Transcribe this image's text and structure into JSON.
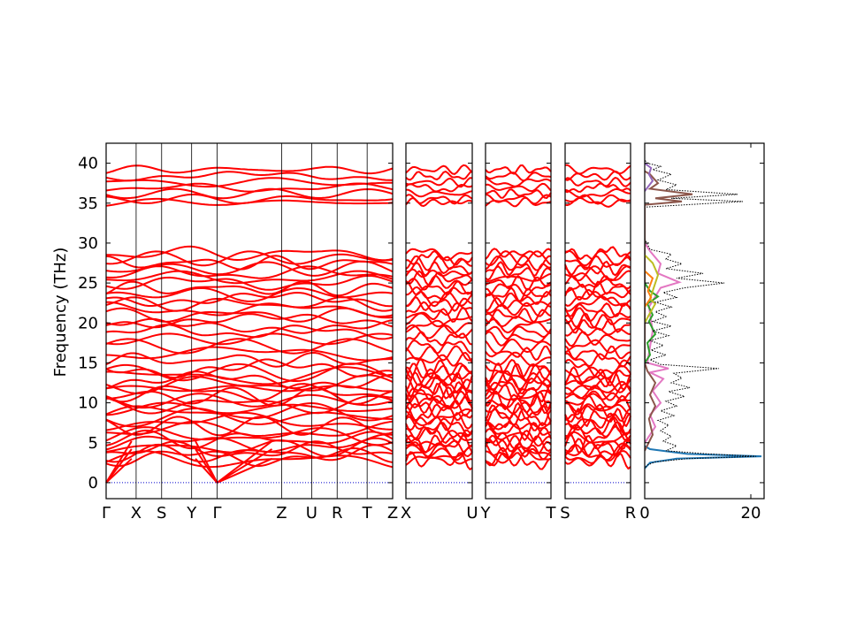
{
  "chart_data": {
    "type": "line",
    "ylabel": "Frequency (THz)",
    "ylim": [
      -2,
      42.5
    ],
    "yticks": [
      0,
      5,
      10,
      15,
      20,
      25,
      30,
      35,
      40
    ],
    "panels": [
      {
        "name": "band-panel-1",
        "segments": [
          {
            "from": "Γ",
            "to": "X",
            "length": 1.0
          },
          {
            "from": "X",
            "to": "S",
            "length": 0.85
          },
          {
            "from": "S",
            "to": "Y",
            "length": 1.0
          },
          {
            "from": "Y",
            "to": "Γ",
            "length": 0.85
          },
          {
            "from": "Γ",
            "to": "Z",
            "length": 2.15
          },
          {
            "from": "Z",
            "to": "U",
            "length": 1.0
          },
          {
            "from": "U",
            "to": "R",
            "length": 0.85
          },
          {
            "from": "R",
            "to": "T",
            "length": 1.0
          },
          {
            "from": "T",
            "to": "Z",
            "length": 0.85
          }
        ],
        "labels": [
          "Γ",
          "X",
          "S",
          "Y",
          "Γ",
          "Z",
          "U",
          "R",
          "T",
          "Z"
        ]
      },
      {
        "name": "band-panel-2",
        "segments": [
          {
            "from": "X",
            "to": "U",
            "length": 1
          }
        ],
        "labels": [
          "X",
          "U"
        ]
      },
      {
        "name": "band-panel-3",
        "segments": [
          {
            "from": "Y",
            "to": "T",
            "length": 1
          }
        ],
        "labels": [
          "Y",
          "T"
        ]
      },
      {
        "name": "band-panel-4",
        "segments": [
          {
            "from": "S",
            "to": "R",
            "length": 1
          }
        ],
        "labels": [
          "S",
          "R"
        ]
      }
    ],
    "band_levels": [
      2.8,
      3.2,
      3.6,
      4.0,
      4.4,
      4.9,
      5.4,
      5.9,
      6.5,
      7.1,
      7.6,
      8.2,
      8.8,
      9.3,
      9.8,
      10.3,
      10.8,
      11.3,
      11.8,
      12.3,
      12.8,
      13.3,
      13.8,
      14.3,
      15.4,
      16.2,
      17.1,
      18.0,
      18.9,
      19.6,
      20.3,
      21.0,
      21.7,
      22.4,
      23.0,
      23.6,
      24.3,
      25.0,
      25.6,
      26.2,
      26.8,
      27.5,
      28.1,
      28.7,
      35.1,
      35.5,
      36.2,
      36.9,
      37.6,
      38.4,
      39.2
    ],
    "acoustic_max": [
      3.0,
      4.2,
      5.2
    ],
    "dos": {
      "xlim": [
        0,
        22.5
      ],
      "xticks": [
        0,
        20
      ],
      "total": [
        [
          0,
          -2
        ],
        [
          0,
          1.8
        ],
        [
          0.5,
          2.2
        ],
        [
          2,
          2.6
        ],
        [
          8,
          3.0
        ],
        [
          21,
          3.3
        ],
        [
          12,
          3.6
        ],
        [
          4,
          4.0
        ],
        [
          6,
          4.6
        ],
        [
          3.5,
          5.2
        ],
        [
          5,
          5.8
        ],
        [
          3,
          6.5
        ],
        [
          4.5,
          7.2
        ],
        [
          2.5,
          7.8
        ],
        [
          5.5,
          8.4
        ],
        [
          3,
          9.0
        ],
        [
          6,
          9.6
        ],
        [
          4,
          10.2
        ],
        [
          7.5,
          10.8
        ],
        [
          4.5,
          11.4
        ],
        [
          8.5,
          11.9
        ],
        [
          5,
          12.5
        ],
        [
          7,
          13.1
        ],
        [
          5.5,
          13.7
        ],
        [
          14,
          14.3
        ],
        [
          3,
          14.8
        ],
        [
          1,
          15.4
        ],
        [
          4,
          16.0
        ],
        [
          1.2,
          16.6
        ],
        [
          3.5,
          17.2
        ],
        [
          1,
          17.8
        ],
        [
          4.5,
          18.4
        ],
        [
          1.5,
          19.0
        ],
        [
          5,
          19.6
        ],
        [
          1.5,
          20.2
        ],
        [
          4,
          20.8
        ],
        [
          2,
          21.4
        ],
        [
          5,
          22.0
        ],
        [
          2,
          22.6
        ],
        [
          6,
          23.2
        ],
        [
          3.5,
          23.8
        ],
        [
          7.5,
          24.4
        ],
        [
          15,
          25.0
        ],
        [
          6,
          25.6
        ],
        [
          11,
          26.2
        ],
        [
          4,
          26.8
        ],
        [
          7,
          27.4
        ],
        [
          4,
          28.0
        ],
        [
          5,
          28.6
        ],
        [
          1,
          29.2
        ],
        [
          0.4,
          30.0
        ],
        [
          0,
          30.5
        ],
        [
          0,
          34.5
        ],
        [
          18.5,
          35.2
        ],
        [
          5,
          35.6
        ],
        [
          17.5,
          36.1
        ],
        [
          4,
          36.7
        ],
        [
          6,
          37.3
        ],
        [
          2.5,
          37.9
        ],
        [
          5,
          38.6
        ],
        [
          1.5,
          39.2
        ],
        [
          3,
          39.6
        ],
        [
          0.5,
          40.0
        ],
        [
          0,
          40.4
        ],
        [
          0,
          42.5
        ]
      ],
      "partials": [
        {
          "color": "#1f77b4",
          "points": [
            [
              0,
              1.8
            ],
            [
              1,
              2.5
            ],
            [
              6,
              3.0
            ],
            [
              22,
              3.3
            ],
            [
              8,
              3.6
            ],
            [
              1,
              4.2
            ],
            [
              0,
              4.6
            ]
          ]
        },
        {
          "color": "#e377c2",
          "points": [
            [
              0,
              5
            ],
            [
              2,
              7
            ],
            [
              1,
              8.5
            ],
            [
              3,
              10
            ],
            [
              1.5,
              11.5
            ],
            [
              3.5,
              13
            ],
            [
              1,
              13.8
            ],
            [
              4.5,
              14.3
            ],
            [
              0.5,
              15
            ],
            [
              1.5,
              19
            ],
            [
              0.8,
              22
            ],
            [
              3,
              24.4
            ],
            [
              6.5,
              25.1
            ],
            [
              2.5,
              26.2
            ],
            [
              3,
              27.4
            ],
            [
              1,
              29
            ],
            [
              0,
              30
            ]
          ]
        },
        {
          "color": "#8c564b",
          "points": [
            [
              0,
              4
            ],
            [
              1.5,
              6
            ],
            [
              0.8,
              8
            ],
            [
              2,
              9.6
            ],
            [
              1,
              11
            ],
            [
              2,
              12.5
            ],
            [
              0.5,
              14
            ],
            [
              0,
              15
            ],
            [
              0,
              34.8
            ],
            [
              7,
              35.2
            ],
            [
              2,
              35.6
            ],
            [
              9,
              36.1
            ],
            [
              1,
              36.8
            ],
            [
              2.5,
              37.5
            ],
            [
              1,
              38.6
            ],
            [
              0,
              39
            ]
          ]
        },
        {
          "color": "#2ca02c",
          "points": [
            [
              0,
              15
            ],
            [
              1,
              16
            ],
            [
              0.5,
              17.5
            ],
            [
              2,
              18.6
            ],
            [
              0.8,
              20.2
            ],
            [
              1.5,
              21
            ],
            [
              0.5,
              22.4
            ],
            [
              2.5,
              23.3
            ],
            [
              1,
              24
            ],
            [
              0,
              25
            ]
          ]
        },
        {
          "color": "#bcbd22",
          "points": [
            [
              0,
              20
            ],
            [
              0.8,
              21
            ],
            [
              2,
              22.4
            ],
            [
              1,
              23
            ],
            [
              2.5,
              26
            ],
            [
              1.5,
              27.5
            ],
            [
              0,
              28.5
            ]
          ]
        },
        {
          "color": "#ff7f0e",
          "points": [
            [
              0,
              22
            ],
            [
              1.2,
              23.2
            ],
            [
              0.6,
              24
            ],
            [
              1.5,
              25.6
            ],
            [
              0,
              26.5
            ]
          ]
        },
        {
          "color": "#9467bd",
          "points": [
            [
              0,
              36.5
            ],
            [
              1.5,
              37.8
            ],
            [
              0.8,
              38.6
            ],
            [
              1.2,
              39.4
            ],
            [
              0,
              40
            ]
          ]
        }
      ]
    }
  }
}
